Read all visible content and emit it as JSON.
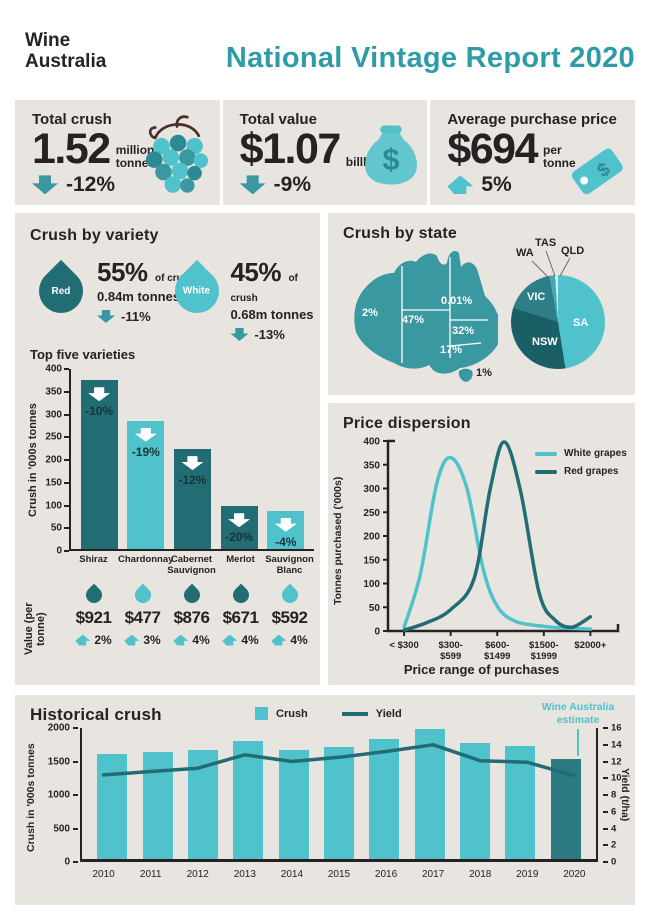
{
  "colors": {
    "light_teal": "#4FC2CB",
    "mid_teal": "#3A98A1",
    "dark_teal": "#226C73",
    "estimate_teal": "#2B7A82",
    "title_teal": "#2E9CA6",
    "pale_teal": "#CDEAED",
    "text": "#262223",
    "panel_bg": "#E8E4DF"
  },
  "header": {
    "logo_line1": "Wine",
    "logo_line2": "Australia",
    "title": "National Vintage Report 2020"
  },
  "stats": [
    {
      "label": "Total crush",
      "value": "1.52",
      "unit": "million\ntonnes",
      "change": "-12%",
      "direction": "down",
      "icon": "grapes-icon"
    },
    {
      "label": "Total value",
      "value": "$1.07",
      "unit": "billlion",
      "change": "-9%",
      "direction": "down",
      "icon": "money-bag-icon"
    },
    {
      "label": "Average purchase price",
      "value": "$694",
      "unit": "per\ntonne",
      "change": "5%",
      "direction": "up",
      "icon": "price-tag-icon"
    }
  ],
  "variety": {
    "title": "Crush by variety",
    "groups": [
      {
        "name": "Red",
        "pct": "55%",
        "of": "of crush",
        "tonnes": "0.84m tonnes",
        "change": "-11%",
        "drop": "dark"
      },
      {
        "name": "White",
        "pct": "45%",
        "of": "of crush",
        "tonnes": "0.68m tonnes",
        "change": "-13%",
        "drop": "light"
      }
    ],
    "value_label": "Value (per tonne)",
    "value_items": [
      {
        "drop": "dark",
        "value": "$921",
        "change": "2%"
      },
      {
        "drop": "light",
        "value": "$477",
        "change": "3%"
      },
      {
        "drop": "dark",
        "value": "$876",
        "change": "4%"
      },
      {
        "drop": "dark",
        "value": "$671",
        "change": "4%"
      },
      {
        "drop": "light",
        "value": "$592",
        "change": "4%"
      }
    ]
  },
  "chart_data": [
    {
      "id": "top-five-varieties",
      "type": "bar",
      "title": "Top five varieties",
      "ylabel": "Crush in '000s tonnes",
      "ylim": [
        0,
        400
      ],
      "yticks": [
        400,
        350,
        300,
        250,
        200,
        150,
        100,
        50,
        0
      ],
      "categories": [
        "Shiraz",
        "Chardonnay",
        "Cabernet\nSauvignon",
        "Merlot",
        "Sauvignon\nBlanc"
      ],
      "values": [
        375,
        285,
        222,
        95,
        85
      ],
      "bar_colors": [
        "dark",
        "light",
        "dark",
        "dark",
        "light"
      ],
      "bar_labels": [
        "-10%",
        "-19%",
        "-12%",
        "-20%",
        "-4%"
      ]
    },
    {
      "id": "crush-by-state",
      "type": "pie",
      "title": "Crush by state",
      "slices": [
        {
          "name": "SA",
          "value": 47,
          "color": "#4FC2CB"
        },
        {
          "name": "NSW",
          "value": 32,
          "color": "#1A5F66"
        },
        {
          "name": "VIC",
          "value": 17,
          "color": "#2E7E88"
        },
        {
          "name": "WA",
          "value": 2,
          "color": "#45A7AF"
        },
        {
          "name": "TAS",
          "value": 1,
          "color": "#CDEAED"
        },
        {
          "name": "QLD",
          "value": 0.01,
          "color": "#1A5F66"
        }
      ],
      "map_labels": [
        {
          "state": "WA",
          "text": "2%"
        },
        {
          "state": "SA",
          "text": "47%"
        },
        {
          "state": "QLD",
          "text": "0.01%"
        },
        {
          "state": "NSW",
          "text": "32%"
        },
        {
          "state": "VIC",
          "text": "17%"
        },
        {
          "state": "TAS",
          "text": "1%"
        }
      ]
    },
    {
      "id": "price-dispersion",
      "type": "line",
      "title": "Price dispersion",
      "xlabel": "Price range of purchases",
      "ylabel": "Tonnes purchased ('000s)",
      "ylim": [
        0,
        400
      ],
      "yticks": [
        400,
        350,
        300,
        250,
        200,
        150,
        100,
        50,
        0
      ],
      "categories": [
        "< $300",
        "$300-\n$599",
        "$600-\n$1499",
        "$1500-\n$1999",
        "$2000+"
      ],
      "series": [
        {
          "name": "White grapes",
          "color": "#4FC2CB",
          "points": [
            [
              0,
              8
            ],
            [
              0.35,
              120
            ],
            [
              0.7,
              310
            ],
            [
              1,
              365
            ],
            [
              1.35,
              300
            ],
            [
              1.7,
              130
            ],
            [
              2,
              52
            ],
            [
              2.4,
              20
            ],
            [
              3,
              10
            ],
            [
              3.5,
              6
            ],
            [
              4,
              4
            ]
          ]
        },
        {
          "name": "Red grapes",
          "color": "#226C73",
          "points": [
            [
              0,
              2
            ],
            [
              0.5,
              18
            ],
            [
              1,
              45
            ],
            [
              1.5,
              110
            ],
            [
              1.85,
              300
            ],
            [
              2.15,
              398
            ],
            [
              2.5,
              295
            ],
            [
              2.9,
              80
            ],
            [
              3.25,
              22
            ],
            [
              3.6,
              8
            ],
            [
              4,
              30
            ]
          ]
        }
      ]
    },
    {
      "id": "historical-crush",
      "type": "bar+line",
      "title": "Historical crush",
      "legend": [
        "Crush",
        "Yield"
      ],
      "annotation": "Wine Australia\nestimate",
      "ylabel_left": "Crush in '000s tonnes",
      "ylabel_right": "Yield (t/ha)",
      "ylim_left": [
        0,
        2000
      ],
      "yticks_left": [
        2000,
        1500,
        1000,
        500,
        0
      ],
      "ylim_right": [
        0,
        16
      ],
      "yticks_right": [
        16,
        14,
        12,
        10,
        8,
        6,
        4,
        2,
        0
      ],
      "categories": [
        "2010",
        "2011",
        "2012",
        "2013",
        "2014",
        "2015",
        "2016",
        "2017",
        "2018",
        "2019",
        "2020"
      ],
      "series": [
        {
          "name": "Crush",
          "type": "bar",
          "values": [
            1600,
            1630,
            1660,
            1800,
            1665,
            1710,
            1835,
            1985,
            1775,
            1725,
            1520
          ]
        },
        {
          "name": "Yield",
          "type": "line",
          "values": [
            10.4,
            10.8,
            11.2,
            12.8,
            12.0,
            12.5,
            13.2,
            14.0,
            12.1,
            11.9,
            10.3
          ]
        }
      ],
      "estimate_index": 10
    }
  ]
}
